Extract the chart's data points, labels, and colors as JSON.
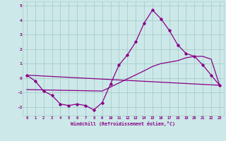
{
  "xlabel": "Windchill (Refroidissement éolien,°C)",
  "bg_color": "#cce8e8",
  "grid_color": "#aacccc",
  "line_color": "#880088",
  "xlim": [
    -0.5,
    23.5
  ],
  "ylim": [
    -2.6,
    5.3
  ],
  "xticks": [
    0,
    1,
    2,
    3,
    4,
    5,
    6,
    7,
    8,
    9,
    10,
    11,
    12,
    13,
    14,
    15,
    16,
    17,
    18,
    19,
    20,
    21,
    22,
    23
  ],
  "yticks": [
    -2,
    -1,
    0,
    1,
    2,
    3,
    4,
    5
  ],
  "line1_x": [
    0,
    1,
    2,
    3,
    4,
    5,
    6,
    7,
    8,
    9,
    10,
    11,
    12,
    13,
    14,
    15,
    16,
    17,
    18,
    19,
    20,
    21,
    22,
    23
  ],
  "line1_y": [
    0.2,
    -0.2,
    -0.9,
    -1.2,
    -1.8,
    -1.9,
    -1.8,
    -1.9,
    -2.2,
    -1.7,
    -0.4,
    0.9,
    1.6,
    2.5,
    3.8,
    4.7,
    4.1,
    3.3,
    2.3,
    1.7,
    1.5,
    0.9,
    0.2,
    -0.5
  ],
  "line2_x": [
    0,
    23
  ],
  "line2_y": [
    0.2,
    -0.5
  ],
  "line3_x": [
    0,
    9,
    14,
    15,
    16,
    17,
    18,
    19,
    20,
    21,
    22,
    23
  ],
  "line3_y": [
    -0.8,
    -0.9,
    0.5,
    0.8,
    1.0,
    1.1,
    1.2,
    1.4,
    1.5,
    1.5,
    1.3,
    -0.5
  ]
}
